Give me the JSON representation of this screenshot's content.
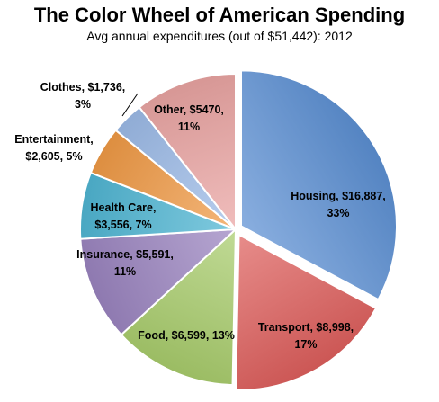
{
  "chart_data": {
    "type": "pie",
    "title": "The Color Wheel of American Spending",
    "subtitle": "Avg annual expenditures (out of $51,442): 2012",
    "total": 51442,
    "slices": [
      {
        "key": "housing",
        "category": "Housing",
        "value": 16887,
        "value_label": "$16,887",
        "percent": 33,
        "label_lines": [
          "Housing, $16,887,",
          "33%"
        ],
        "color": "#5b8fd3"
      },
      {
        "key": "transport",
        "category": "Transport",
        "value": 8998,
        "value_label": "$8,998",
        "percent": 17,
        "label_lines": [
          "Transport, $8,998,",
          "17%"
        ],
        "color": "#de5f5c"
      },
      {
        "key": "food",
        "category": "Food",
        "value": 6599,
        "value_label": "$6,599",
        "percent": 13,
        "label_lines": [
          "Food, $6,599, 13%"
        ],
        "color": "#a8cc6c"
      },
      {
        "key": "insurance",
        "category": "Insurance",
        "value": 5591,
        "value_label": "$5,591",
        "percent": 11,
        "label_lines": [
          "Insurance, $5,591,",
          "11%"
        ],
        "color": "#9a83bf"
      },
      {
        "key": "health-care",
        "category": "Health Care",
        "value": 3556,
        "value_label": "$3,556",
        "percent": 7,
        "label_lines": [
          "Health Care,",
          "$3,556, 7%"
        ],
        "color": "#4fb6d3"
      },
      {
        "key": "entertainment",
        "category": "Entertainment",
        "value": 2605,
        "value_label": "$2,605",
        "percent": 5,
        "label_lines": [
          "Entertainment,",
          "$2,605, 5%"
        ],
        "color": "#f09a46"
      },
      {
        "key": "clothes",
        "category": "Clothes",
        "value": 1736,
        "value_label": "$1,736",
        "percent": 3,
        "label_lines": [
          "Clothes, $1,736,",
          "3%"
        ],
        "color": "#9dbbe8"
      },
      {
        "key": "other",
        "category": "Other",
        "value": 5470,
        "value_label": "$5470",
        "percent": 11,
        "label_lines": [
          "Other, $5470,",
          "11%"
        ],
        "color": "#eaa4a2"
      }
    ],
    "exploded_slices": [
      "housing",
      "transport"
    ],
    "start_angle": "12 o'clock, clockwise"
  }
}
